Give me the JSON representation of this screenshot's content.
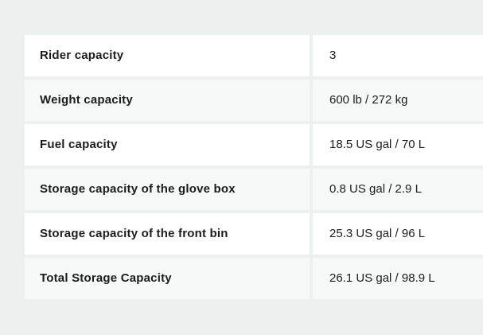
{
  "colors": {
    "background": "#ecf1f0",
    "row_odd": "#ffffff",
    "row_even": "#f7f8f8",
    "text": "#1c1c1c"
  },
  "table": {
    "rows": [
      {
        "label": "Rider capacity",
        "value": "3"
      },
      {
        "label": "Weight capacity",
        "value": "600 lb / 272 kg"
      },
      {
        "label": "Fuel capacity",
        "value": "18.5 US gal / 70 L"
      },
      {
        "label": "Storage capacity of the glove box",
        "value": "0.8 US gal / 2.9 L"
      },
      {
        "label": "Storage capacity of the front bin",
        "value": "25.3 US gal / 96 L"
      },
      {
        "label": "Total Storage Capacity",
        "value": "26.1 US gal / 98.9 L"
      }
    ]
  }
}
